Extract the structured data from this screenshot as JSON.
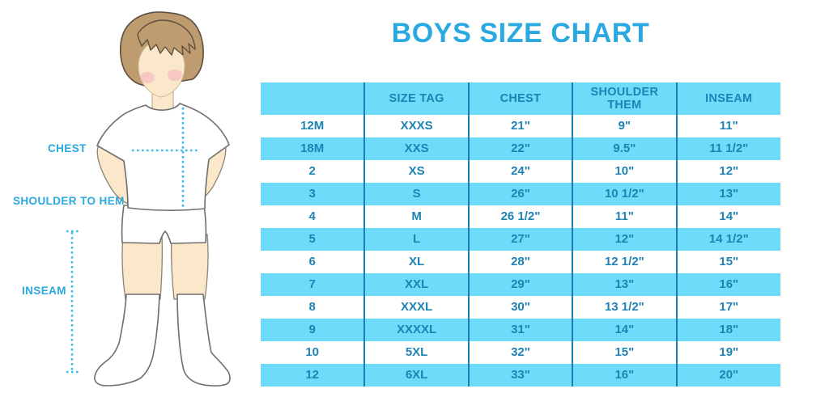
{
  "title": "BOYS SIZE CHART",
  "colors": {
    "accent": "#29A9E0",
    "table_text": "#1E82B4",
    "row_fill": "#6CDCF8",
    "divider": "#1D7CB0",
    "dotted": "#3FBCEC"
  },
  "figure": {
    "description_labels": {
      "chest": "CHEST",
      "shoulder_to_hem": "SHOULDER TO HEM",
      "inseam": "INSEAM"
    },
    "colors": {
      "skin": "#FBE7C9",
      "hair": "#BE9C70",
      "cheek": "#F3A9B9",
      "garment": "#FFFFFF"
    }
  },
  "chart_data": {
    "type": "table",
    "title": "BOYS SIZE CHART",
    "columns": [
      "",
      "SIZE TAG",
      "CHEST",
      "SHOULDER THEM",
      "INSEAM"
    ],
    "rows": [
      [
        "12M",
        "XXXS",
        "21\"",
        "9\"",
        "11\""
      ],
      [
        "18M",
        "XXS",
        "22\"",
        "9.5\"",
        "11 1/2\""
      ],
      [
        "2",
        "XS",
        "24\"",
        "10\"",
        "12\""
      ],
      [
        "3",
        "S",
        "26\"",
        "10 1/2\"",
        "13\""
      ],
      [
        "4",
        "M",
        "26 1/2\"",
        "11\"",
        "14\""
      ],
      [
        "5",
        "L",
        "27\"",
        "12\"",
        "14 1/2\""
      ],
      [
        "6",
        "XL",
        "28\"",
        "12 1/2\"",
        "15\""
      ],
      [
        "7",
        "XXL",
        "29\"",
        "13\"",
        "16\""
      ],
      [
        "8",
        "XXXL",
        "30\"",
        "13 1/2\"",
        "17\""
      ],
      [
        "9",
        "XXXXL",
        "31\"",
        "14\"",
        "18\""
      ],
      [
        "10",
        "5XL",
        "32\"",
        "15\"",
        "19\""
      ],
      [
        "12",
        "6XL",
        "33\"",
        "16\"",
        "20\""
      ]
    ],
    "layout": {
      "row_striping": "white / light-blue alternating, header light-blue",
      "column_dividers": true,
      "horizontal_gridlines": false
    }
  }
}
